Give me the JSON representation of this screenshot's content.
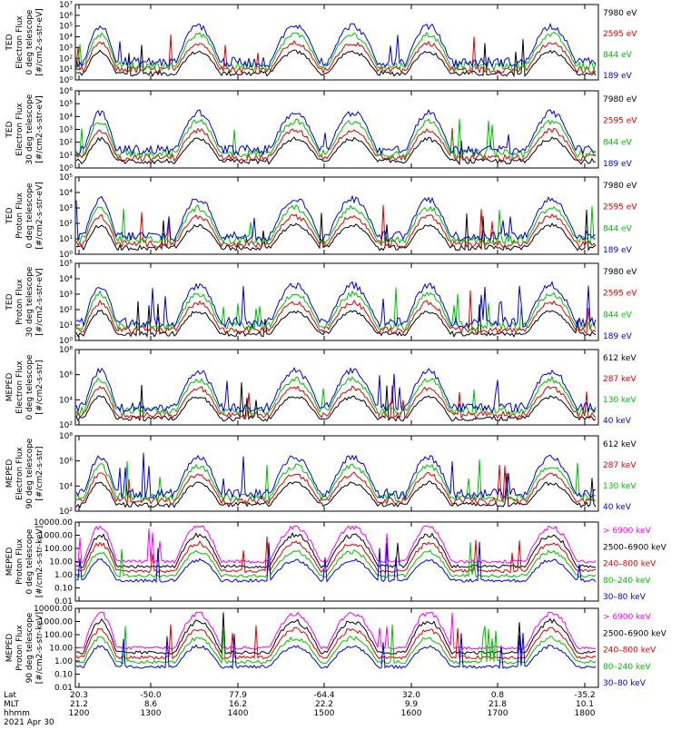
{
  "figure": {
    "footer_rows": [
      {
        "label": "Lat",
        "values": [
          "20.3",
          "-50.0",
          "77.9",
          "-64.4",
          "32.0",
          "0.8",
          "-35.2"
        ]
      },
      {
        "label": "MLT",
        "values": [
          "21.2",
          "8.6",
          "16.2",
          "22.2",
          "9.9",
          "21.8",
          "10.1"
        ]
      },
      {
        "label": "hhmm",
        "values": [
          "1200",
          "1300",
          "1400",
          "1500",
          "1600",
          "1700",
          "1800"
        ]
      }
    ],
    "date": "2021 Apr 30"
  },
  "chart_data": [
    {
      "type": "line",
      "ylabel": [
        "TED",
        "Electron Flux",
        "0 deg telescope",
        "[#/cm2-s-str-eV]"
      ],
      "yscale": "log",
      "ylim": [
        1,
        10000000
      ],
      "ytick_labels": [
        "10⁰",
        "10¹",
        "10²",
        "10³",
        "10⁴",
        "10⁵",
        "10⁶",
        "10⁷"
      ],
      "xlim": [
        1200,
        1800
      ],
      "series": [
        {
          "name": "7980 eV",
          "color": "#000000"
        },
        {
          "name": "2595 eV",
          "color": "#e00000"
        },
        {
          "name": "844 eV",
          "color": "#00c000"
        },
        {
          "name": "189 eV",
          "color": "#0000e0"
        }
      ]
    },
    {
      "type": "line",
      "ylabel": [
        "TED",
        "Electron Flux",
        "30 deg telescope",
        "[#/cm2-s-str-eV]"
      ],
      "yscale": "log",
      "ylim": [
        1,
        1000000
      ],
      "ytick_labels": [
        "10⁰",
        "10¹",
        "10²",
        "10³",
        "10⁴",
        "10⁵",
        "10⁶"
      ],
      "xlim": [
        1200,
        1800
      ],
      "series": [
        {
          "name": "7980 eV",
          "color": "#000000"
        },
        {
          "name": "2595 eV",
          "color": "#e00000"
        },
        {
          "name": "844 eV",
          "color": "#00c000"
        },
        {
          "name": "189 eV",
          "color": "#0000e0"
        }
      ]
    },
    {
      "type": "line",
      "ylabel": [
        "TED",
        "Proton Flux",
        "0 deg telescope",
        "[#/cm2-s-str-eV]"
      ],
      "yscale": "log",
      "ylim": [
        1,
        100000
      ],
      "ytick_labels": [
        "10⁰",
        "10¹",
        "10²",
        "10³",
        "10⁴",
        "10⁵"
      ],
      "xlim": [
        1200,
        1800
      ],
      "series": [
        {
          "name": "7980 eV",
          "color": "#000000"
        },
        {
          "name": "2595 eV",
          "color": "#e00000"
        },
        {
          "name": "844 eV",
          "color": "#00c000"
        },
        {
          "name": "189 eV",
          "color": "#0000e0"
        }
      ]
    },
    {
      "type": "line",
      "ylabel": [
        "TED",
        "Proton Flux",
        "30 deg telescope",
        "[#/cm2-s-str-eV]"
      ],
      "yscale": "log",
      "ylim": [
        1,
        100000
      ],
      "ytick_labels": [
        "10⁰",
        "10¹",
        "10²",
        "10³",
        "10⁴",
        "10⁵"
      ],
      "xlim": [
        1200,
        1800
      ],
      "series": [
        {
          "name": "7980 eV",
          "color": "#000000"
        },
        {
          "name": "2595 eV",
          "color": "#e00000"
        },
        {
          "name": "844 eV",
          "color": "#00c000"
        },
        {
          "name": "189 eV",
          "color": "#0000e0"
        }
      ]
    },
    {
      "type": "line",
      "ylabel": [
        "MEPED",
        "Electron Flux",
        "0 deg telescope",
        "[#/cm2-s-str]"
      ],
      "yscale": "log",
      "ylim": [
        10,
        100000000
      ],
      "ytick_labels": [
        "10²",
        "10⁴",
        "10⁶",
        "10⁸"
      ],
      "xlim": [
        1200,
        1800
      ],
      "series": [
        {
          "name": "612 keV",
          "color": "#000000"
        },
        {
          "name": "287 keV",
          "color": "#e00000"
        },
        {
          "name": "130 keV",
          "color": "#00c000"
        },
        {
          "name": "40 keV",
          "color": "#0000e0"
        }
      ]
    },
    {
      "type": "line",
      "ylabel": [
        "MEPED",
        "Electron Flux",
        "90 deg telescope",
        "[#/cm2-s-str]"
      ],
      "yscale": "log",
      "ylim": [
        10,
        100000000
      ],
      "ytick_labels": [
        "10²",
        "10⁴",
        "10⁶",
        "10⁸"
      ],
      "xlim": [
        1200,
        1800
      ],
      "series": [
        {
          "name": "612 keV",
          "color": "#000000"
        },
        {
          "name": "287 keV",
          "color": "#e00000"
        },
        {
          "name": "130 keV",
          "color": "#00c000"
        },
        {
          "name": "40 keV",
          "color": "#0000e0"
        }
      ]
    },
    {
      "type": "line",
      "ylabel": [
        "MEPED",
        "Proton Flux",
        "0 deg telescope",
        "[#/cm2-s-str-keV]"
      ],
      "yscale": "log",
      "ylim": [
        0.01,
        10000
      ],
      "ytick_labels": [
        "0.01",
        "0.10",
        "1.00",
        "10.00",
        "100.00",
        "1000.00",
        "10000.00"
      ],
      "xlim": [
        1200,
        1800
      ],
      "series": [
        {
          "name": "> 6900 keV",
          "color": "#ff00ff"
        },
        {
          "name": "2500–6900 keV",
          "color": "#000000"
        },
        {
          "name": "240–800 keV",
          "color": "#e00000"
        },
        {
          "name": "80–240 keV",
          "color": "#00c000"
        },
        {
          "name": "30–80 keV",
          "color": "#0000e0"
        }
      ]
    },
    {
      "type": "line",
      "ylabel": [
        "MEPED",
        "Proton Flux",
        "90 deg telescope",
        "[#/cm2-s-str-keV]"
      ],
      "yscale": "log",
      "ylim": [
        0.01,
        10000
      ],
      "ytick_labels": [
        "0.01",
        "0.10",
        "1.00",
        "10.00",
        "100.00",
        "1000.00",
        "10000.00"
      ],
      "xlim": [
        1200,
        1800
      ],
      "series": [
        {
          "name": "> 6900 keV",
          "color": "#ff00ff"
        },
        {
          "name": "2500–6900 keV",
          "color": "#000000"
        },
        {
          "name": "240–800 keV",
          "color": "#e00000"
        },
        {
          "name": "80–240 keV",
          "color": "#00c000"
        },
        {
          "name": "30–80 keV",
          "color": "#0000e0"
        }
      ]
    }
  ]
}
